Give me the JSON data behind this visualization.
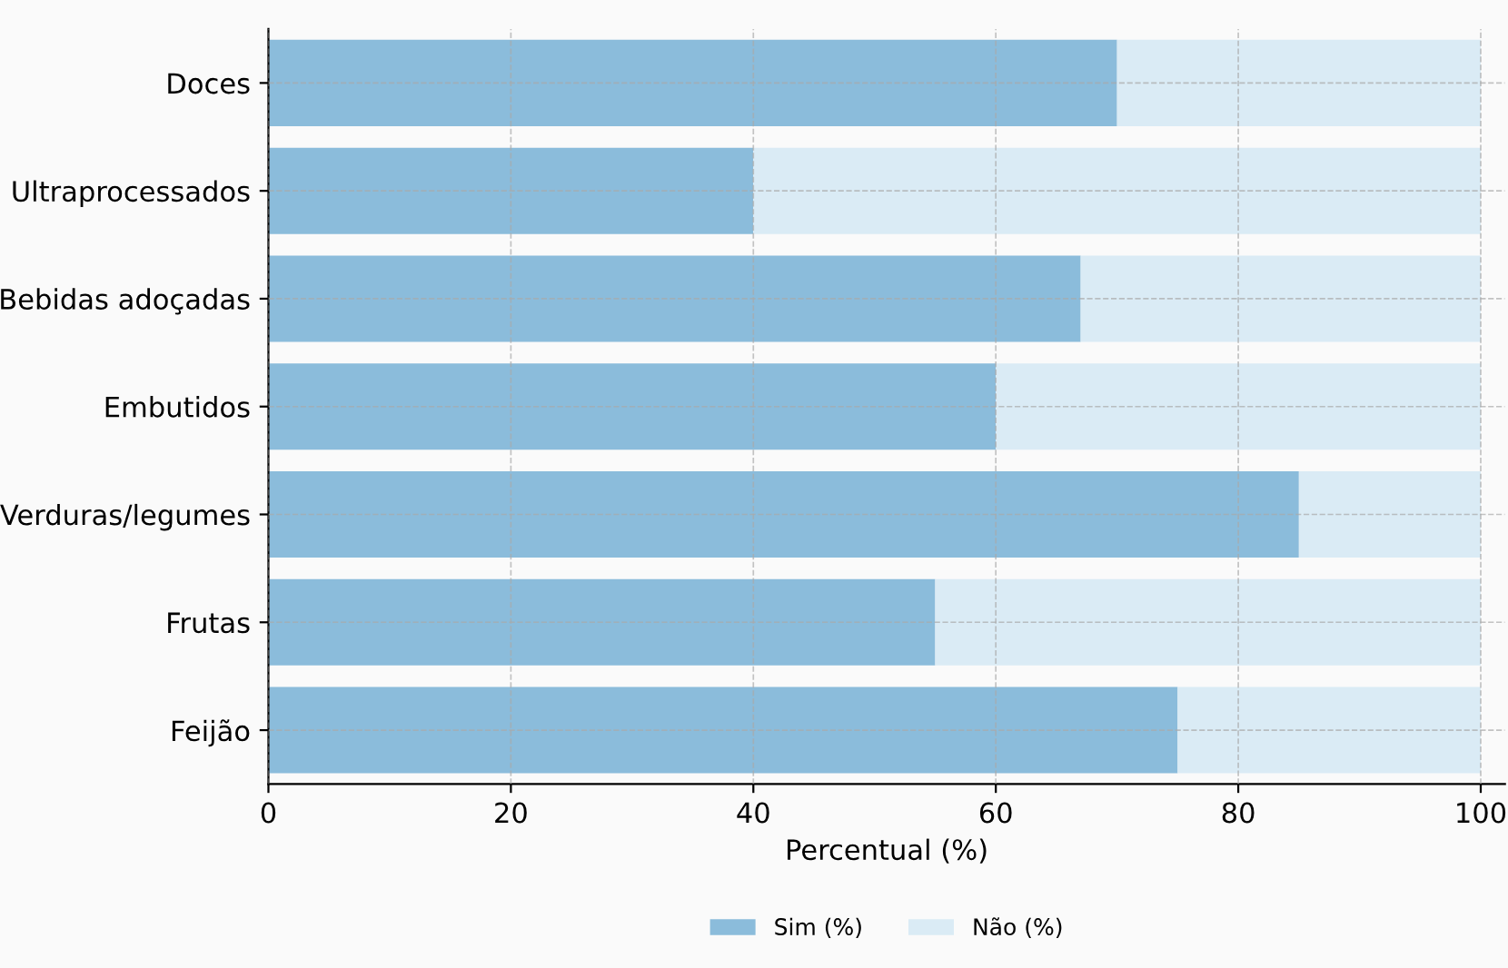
{
  "chart_data": {
    "type": "bar",
    "orientation": "horizontal",
    "stacked": true,
    "categories": [
      "Doces",
      "Ultraprocessados",
      "Bebidas adoçadas",
      "Embutidos",
      "Verduras/legumes",
      "Frutas",
      "Feijão"
    ],
    "series": [
      {
        "name": "Sim (%)",
        "color": "#8bbcdb",
        "values": [
          70,
          40,
          67,
          60,
          85,
          55,
          75
        ]
      },
      {
        "name": "Não (%)",
        "color": "#daebf5",
        "values": [
          30,
          60,
          33,
          40,
          15,
          45,
          25
        ]
      }
    ],
    "xlabel": "Percentual (%)",
    "xlim": [
      0,
      102
    ],
    "xticks": [
      0,
      20,
      40,
      60,
      80,
      100
    ],
    "grid": true,
    "legend": "bottom"
  }
}
